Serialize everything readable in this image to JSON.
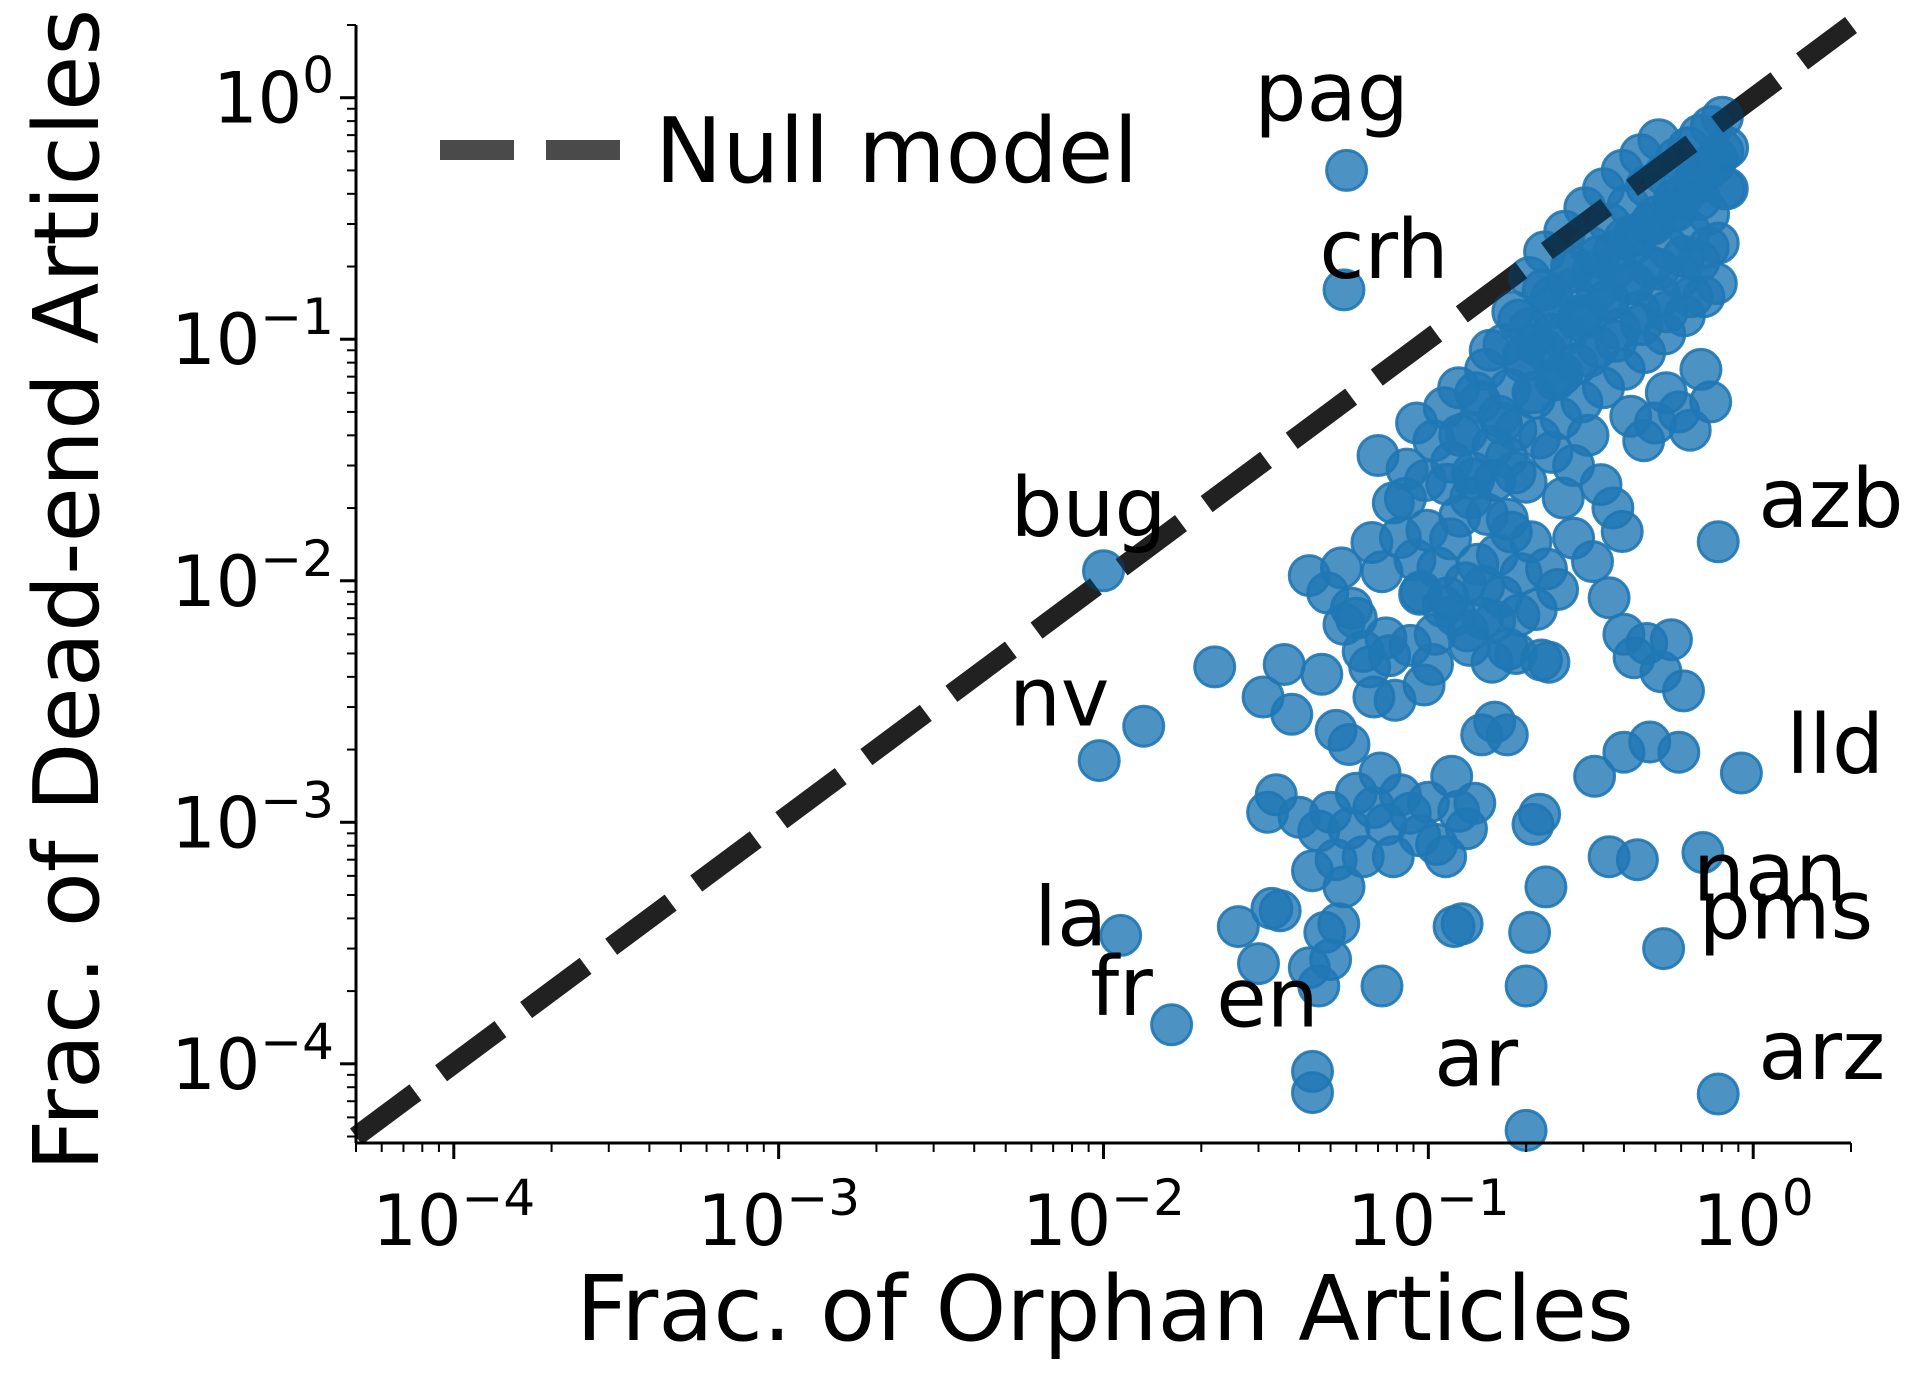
{
  "chart_data": {
    "type": "scatter",
    "xlabel": "Frac. of Orphan Articles",
    "ylabel": "Frac. of Dead-end Articles",
    "xscale": "log",
    "yscale": "log",
    "xlim": [
      5e-05,
      2.0
    ],
    "ylim": [
      4.7e-05,
      2.0
    ],
    "grid": false,
    "legend": {
      "placement": "top-left",
      "entries": [
        {
          "label": "Null model",
          "style": "dashed"
        }
      ]
    },
    "colors": {
      "points": "#1f77b4",
      "null_model": "#4a4a4a"
    },
    "x_ticks": [
      {
        "base": "10",
        "exp": "−4",
        "value": 0.0001
      },
      {
        "base": "10",
        "exp": "−3",
        "value": 0.001
      },
      {
        "base": "10",
        "exp": "−2",
        "value": 0.01
      },
      {
        "base": "10",
        "exp": "−1",
        "value": 0.1
      },
      {
        "base": "10",
        "exp": "0",
        "value": 1
      }
    ],
    "y_ticks": [
      {
        "base": "10",
        "exp": "−4",
        "value": 0.0001
      },
      {
        "base": "10",
        "exp": "−3",
        "value": 0.001
      },
      {
        "base": "10",
        "exp": "−2",
        "value": 0.01
      },
      {
        "base": "10",
        "exp": "−1",
        "value": 0.1
      },
      {
        "base": "10",
        "exp": "0",
        "value": 1
      }
    ],
    "null_model": {
      "x": [
        5e-05,
        2.0
      ],
      "y": [
        5e-05,
        2.0
      ]
    },
    "labeled_points": [
      {
        "label": "pag",
        "x": 0.056,
        "y": 0.5
      },
      {
        "label": "crh",
        "x": 0.055,
        "y": 0.16
      },
      {
        "label": "bug",
        "x": 0.01,
        "y": 0.011
      },
      {
        "label": "azb",
        "x": 0.78,
        "y": 0.0145
      },
      {
        "label": "nv",
        "x": 0.0097,
        "y": 0.0018
      },
      {
        "label": "lld",
        "x": 0.92,
        "y": 0.0016
      },
      {
        "label": "nan",
        "x": 0.7,
        "y": 0.00075
      },
      {
        "label": "pms",
        "x": 0.53,
        "y": 0.0003
      },
      {
        "label": "la",
        "x": 0.0113,
        "y": 0.00034
      },
      {
        "label": "fr",
        "x": 0.0162,
        "y": 0.000145
      },
      {
        "label": "en",
        "x": 0.044,
        "y": 9.3e-05
      },
      {
        "label": "ar",
        "x": 0.2,
        "y": 5.3e-05
      },
      {
        "label": "arz",
        "x": 0.78,
        "y": 7.5e-05
      }
    ],
    "points": [
      [
        0.0133,
        0.0025
      ],
      [
        0.022,
        0.0044
      ],
      [
        0.031,
        0.0033
      ],
      [
        0.036,
        0.0045
      ],
      [
        0.038,
        0.0028
      ],
      [
        0.043,
        0.0105
      ],
      [
        0.047,
        0.0041
      ],
      [
        0.049,
        0.0089
      ],
      [
        0.052,
        0.0024
      ],
      [
        0.054,
        0.0113
      ],
      [
        0.055,
        0.0066
      ],
      [
        0.057,
        0.0021
      ],
      [
        0.058,
        0.0077
      ],
      [
        0.06,
        0.007
      ],
      [
        0.063,
        0.0051
      ],
      [
        0.066,
        0.0044
      ],
      [
        0.067,
        0.0144
      ],
      [
        0.068,
        0.0033
      ],
      [
        0.072,
        0.0109
      ],
      [
        0.074,
        0.0058
      ],
      [
        0.076,
        0.0049
      ],
      [
        0.079,
        0.0032
      ],
      [
        0.082,
        0.0151
      ],
      [
        0.085,
        0.0219
      ],
      [
        0.088,
        0.0054
      ],
      [
        0.091,
        0.0122
      ],
      [
        0.094,
        0.0088
      ],
      [
        0.097,
        0.0037
      ],
      [
        0.099,
        0.0162
      ],
      [
        0.103,
        0.0045
      ],
      [
        0.107,
        0.0113
      ],
      [
        0.111,
        0.0078
      ],
      [
        0.114,
        0.0251
      ],
      [
        0.117,
        0.0149
      ],
      [
        0.121,
        0.0072
      ],
      [
        0.125,
        0.0185
      ],
      [
        0.13,
        0.0098
      ],
      [
        0.134,
        0.0054
      ],
      [
        0.138,
        0.0264
      ],
      [
        0.142,
        0.0117
      ],
      [
        0.147,
        0.007
      ],
      [
        0.152,
        0.0188
      ],
      [
        0.157,
        0.0046
      ],
      [
        0.163,
        0.0128
      ],
      [
        0.168,
        0.0086
      ],
      [
        0.174,
        0.0325
      ],
      [
        0.18,
        0.0159
      ],
      [
        0.186,
        0.005
      ],
      [
        0.193,
        0.0107
      ],
      [
        0.2,
        0.0256
      ],
      [
        0.207,
        0.0145
      ],
      [
        0.215,
        0.0076
      ],
      [
        0.223,
        0.0047
      ],
      [
        0.231,
        0.0112
      ],
      [
        0.07,
        0.033
      ],
      [
        0.078,
        0.021
      ],
      [
        0.086,
        0.029
      ],
      [
        0.092,
        0.045
      ],
      [
        0.098,
        0.026
      ],
      [
        0.104,
        0.038
      ],
      [
        0.112,
        0.052
      ],
      [
        0.118,
        0.031
      ],
      [
        0.124,
        0.063
      ],
      [
        0.131,
        0.041
      ],
      [
        0.137,
        0.028
      ],
      [
        0.144,
        0.055
      ],
      [
        0.15,
        0.075
      ],
      [
        0.158,
        0.036
      ],
      [
        0.165,
        0.048
      ],
      [
        0.171,
        0.095
      ],
      [
        0.178,
        0.062
      ],
      [
        0.186,
        0.042
      ],
      [
        0.195,
        0.081
      ],
      [
        0.204,
        0.11
      ],
      [
        0.212,
        0.057
      ],
      [
        0.22,
        0.039
      ],
      [
        0.229,
        0.09
      ],
      [
        0.238,
        0.135
      ],
      [
        0.246,
        0.068
      ],
      [
        0.256,
        0.047
      ],
      [
        0.265,
        0.105
      ],
      [
        0.275,
        0.16
      ],
      [
        0.286,
        0.079
      ],
      [
        0.297,
        0.055
      ],
      [
        0.308,
        0.125
      ],
      [
        0.32,
        0.19
      ],
      [
        0.333,
        0.093
      ],
      [
        0.346,
        0.063
      ],
      [
        0.359,
        0.145
      ],
      [
        0.373,
        0.23
      ],
      [
        0.387,
        0.11
      ],
      [
        0.401,
        0.075
      ],
      [
        0.416,
        0.17
      ],
      [
        0.431,
        0.27
      ],
      [
        0.447,
        0.13
      ],
      [
        0.463,
        0.088
      ],
      [
        0.48,
        0.2
      ],
      [
        0.498,
        0.32
      ],
      [
        0.516,
        0.15
      ],
      [
        0.534,
        0.105
      ],
      [
        0.553,
        0.235
      ],
      [
        0.573,
        0.38
      ],
      [
        0.593,
        0.18
      ],
      [
        0.614,
        0.125
      ],
      [
        0.636,
        0.28
      ],
      [
        0.658,
        0.45
      ],
      [
        0.681,
        0.21
      ],
      [
        0.705,
        0.15
      ],
      [
        0.729,
        0.33
      ],
      [
        0.754,
        0.53
      ],
      [
        0.78,
        0.25
      ],
      [
        0.806,
        0.6
      ],
      [
        0.832,
        0.42
      ],
      [
        0.19,
        0.12
      ],
      [
        0.205,
        0.18
      ],
      [
        0.215,
        0.095
      ],
      [
        0.228,
        0.23
      ],
      [
        0.24,
        0.15
      ],
      [
        0.252,
        0.07
      ],
      [
        0.263,
        0.28
      ],
      [
        0.276,
        0.2
      ],
      [
        0.29,
        0.12
      ],
      [
        0.303,
        0.35
      ],
      [
        0.317,
        0.24
      ],
      [
        0.331,
        0.16
      ],
      [
        0.346,
        0.42
      ],
      [
        0.362,
        0.3
      ],
      [
        0.378,
        0.2
      ],
      [
        0.395,
        0.5
      ],
      [
        0.413,
        0.36
      ],
      [
        0.431,
        0.25
      ],
      [
        0.45,
        0.58
      ],
      [
        0.47,
        0.43
      ],
      [
        0.491,
        0.3
      ],
      [
        0.512,
        0.67
      ],
      [
        0.534,
        0.48
      ],
      [
        0.557,
        0.34
      ],
      [
        0.581,
        0.56
      ],
      [
        0.606,
        0.39
      ],
      [
        0.632,
        0.62
      ],
      [
        0.659,
        0.44
      ],
      [
        0.686,
        0.7
      ],
      [
        0.714,
        0.5
      ],
      [
        0.743,
        0.76
      ],
      [
        0.773,
        0.56
      ],
      [
        0.803,
        0.83
      ],
      [
        0.834,
        0.62
      ],
      [
        0.14,
        0.06
      ],
      [
        0.155,
        0.09
      ],
      [
        0.168,
        0.045
      ],
      [
        0.182,
        0.13
      ],
      [
        0.196,
        0.085
      ],
      [
        0.21,
        0.06
      ],
      [
        0.226,
        0.16
      ],
      [
        0.241,
        0.105
      ],
      [
        0.258,
        0.072
      ],
      [
        0.276,
        0.19
      ],
      [
        0.294,
        0.125
      ],
      [
        0.313,
        0.085
      ],
      [
        0.334,
        0.22
      ],
      [
        0.356,
        0.145
      ],
      [
        0.378,
        0.098
      ],
      [
        0.402,
        0.26
      ],
      [
        0.428,
        0.17
      ],
      [
        0.454,
        0.115
      ],
      [
        0.482,
        0.3
      ],
      [
        0.512,
        0.195
      ],
      [
        0.543,
        0.13
      ],
      [
        0.576,
        0.34
      ],
      [
        0.611,
        0.22
      ],
      [
        0.647,
        0.15
      ],
      [
        0.686,
        0.38
      ],
      [
        0.727,
        0.24
      ],
      [
        0.77,
        0.17
      ],
      [
        0.815,
        0.42
      ],
      [
        0.125,
        0.04
      ],
      [
        0.135,
        0.022
      ],
      [
        0.16,
        0.026
      ],
      [
        0.175,
        0.018
      ],
      [
        0.185,
        0.028
      ],
      [
        0.24,
        0.034
      ],
      [
        0.26,
        0.022
      ],
      [
        0.28,
        0.03
      ],
      [
        0.31,
        0.04
      ],
      [
        0.34,
        0.025
      ],
      [
        0.37,
        0.02
      ],
      [
        0.395,
        0.016
      ],
      [
        0.42,
        0.048
      ],
      [
        0.46,
        0.038
      ],
      [
        0.5,
        0.045
      ],
      [
        0.54,
        0.06
      ],
      [
        0.59,
        0.05
      ],
      [
        0.64,
        0.042
      ],
      [
        0.69,
        0.075
      ],
      [
        0.74,
        0.055
      ],
      [
        0.095,
        0.009
      ],
      [
        0.105,
        0.006
      ],
      [
        0.115,
        0.0085
      ],
      [
        0.132,
        0.0062
      ],
      [
        0.148,
        0.0095
      ],
      [
        0.16,
        0.0068
      ],
      [
        0.176,
        0.0052
      ],
      [
        0.19,
        0.0072
      ],
      [
        0.235,
        0.0046
      ],
      [
        0.25,
        0.0092
      ],
      [
        0.28,
        0.015
      ],
      [
        0.32,
        0.012
      ],
      [
        0.36,
        0.0085
      ],
      [
        0.4,
        0.006
      ],
      [
        0.43,
        0.0048
      ],
      [
        0.47,
        0.0055
      ],
      [
        0.52,
        0.0042
      ],
      [
        0.56,
        0.0057
      ],
      [
        0.61,
        0.0035
      ],
      [
        0.032,
        0.0011
      ],
      [
        0.034,
        0.0013
      ],
      [
        0.04,
        0.00105
      ],
      [
        0.044,
        0.00063
      ],
      [
        0.046,
        0.00092
      ],
      [
        0.05,
        0.0011
      ],
      [
        0.052,
        0.0007
      ],
      [
        0.055,
        0.00054
      ],
      [
        0.057,
        0.00094
      ],
      [
        0.06,
        0.00132
      ],
      [
        0.063,
        0.00072
      ],
      [
        0.068,
        0.00115
      ],
      [
        0.071,
        0.0016
      ],
      [
        0.074,
        0.00098
      ],
      [
        0.078,
        0.00072
      ],
      [
        0.082,
        0.0013
      ],
      [
        0.088,
        0.00109
      ],
      [
        0.094,
        0.00088
      ],
      [
        0.1,
        0.00121
      ],
      [
        0.106,
        0.00081
      ],
      [
        0.113,
        0.00072
      ],
      [
        0.118,
        0.00155
      ],
      [
        0.124,
        0.00111
      ],
      [
        0.131,
        0.00094
      ],
      [
        0.139,
        0.0012
      ],
      [
        0.146,
        0.0023
      ],
      [
        0.16,
        0.0026
      ],
      [
        0.175,
        0.0023
      ],
      [
        0.21,
        0.00098
      ],
      [
        0.22,
        0.00108
      ],
      [
        0.23,
        0.00054
      ],
      [
        0.325,
        0.00155
      ],
      [
        0.36,
        0.00072
      ],
      [
        0.4,
        0.00195
      ],
      [
        0.44,
        0.0007
      ],
      [
        0.48,
        0.00215
      ],
      [
        0.59,
        0.00195
      ],
      [
        0.026,
        0.00037
      ],
      [
        0.03,
        0.00026
      ],
      [
        0.033,
        0.00044
      ],
      [
        0.035,
        0.00043
      ],
      [
        0.043,
        0.00025
      ],
      [
        0.046,
        0.00021
      ],
      [
        0.048,
        0.00035
      ],
      [
        0.05,
        0.00027
      ],
      [
        0.053,
        0.00038
      ],
      [
        0.072,
        0.00021
      ],
      [
        0.12,
        0.00037
      ],
      [
        0.127,
        0.00038
      ],
      [
        0.2,
        0.00021
      ],
      [
        0.205,
        0.00035
      ],
      [
        0.044,
        7.6e-05
      ]
    ]
  }
}
